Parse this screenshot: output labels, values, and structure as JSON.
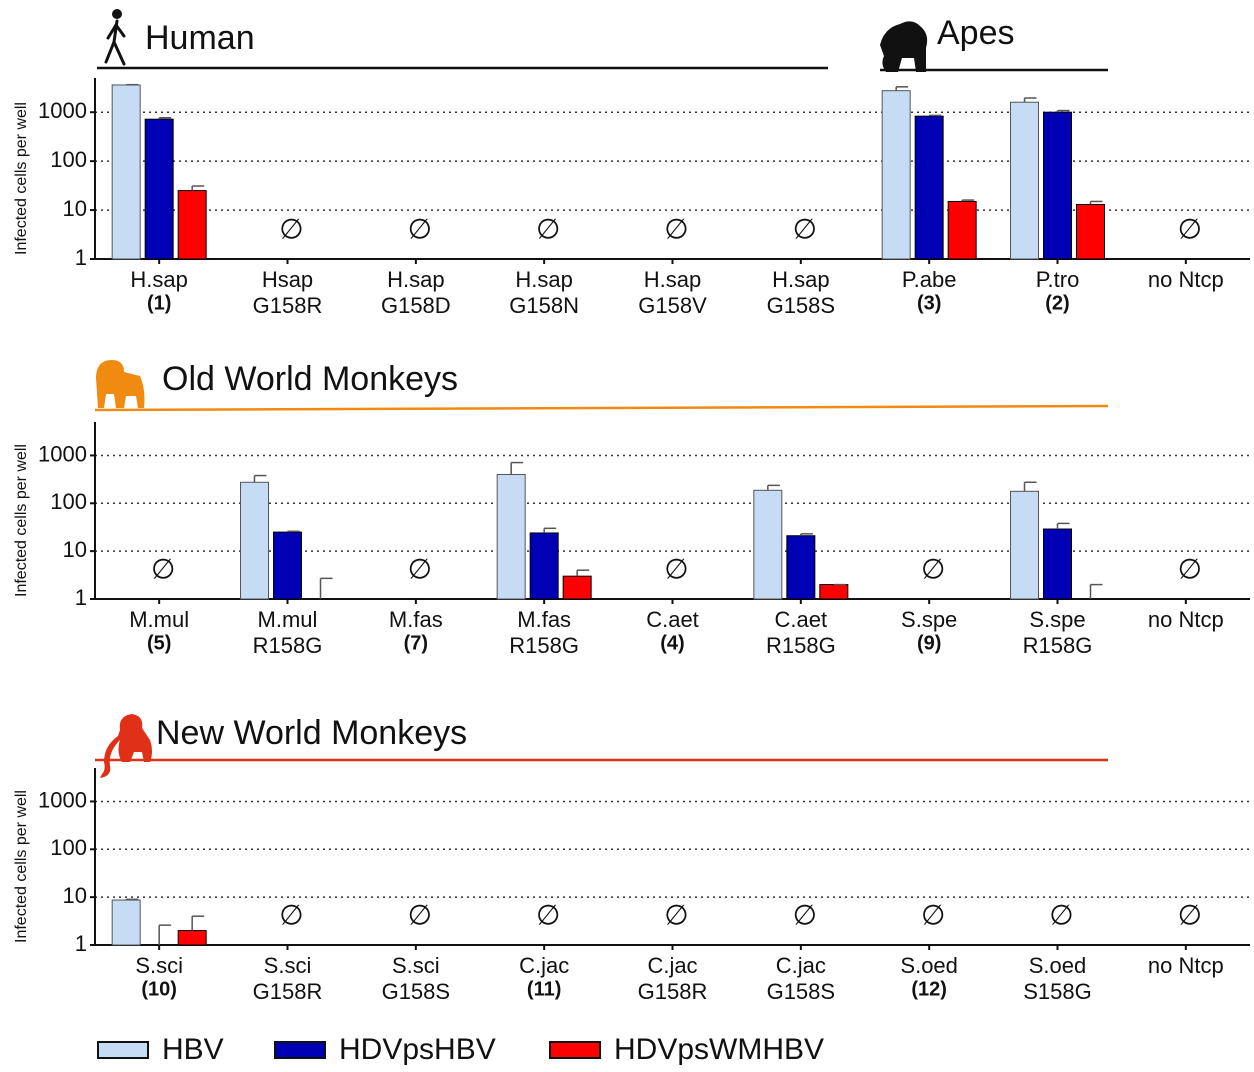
{
  "legend": [
    {
      "name": "HBV",
      "color": "#c6dcf5"
    },
    {
      "name": "HDVpsHBV",
      "color": "#0000b4"
    },
    {
      "name": "HDVpsWMHBV",
      "color": "#ff0000"
    }
  ],
  "chart_data": [
    {
      "type": "bar",
      "group_titles": [
        "Human",
        "Apes"
      ],
      "y_label": "Infected cells per well",
      "log_scale": true,
      "grid": true,
      "ylim": [
        1,
        5000
      ],
      "yticks": [
        1,
        10,
        100,
        1000
      ],
      "no_data_symbol": "∅",
      "categories": [
        "H.sap",
        "Hsap",
        "H.sap",
        "H.sap",
        "H.sap",
        "H.sap",
        "P.abe",
        "P.tro",
        "no Ntcp"
      ],
      "sublabels": [
        "(1)",
        "G158R",
        "G158D",
        "G158N",
        "G158V",
        "G158S",
        "(3)",
        "(2)",
        null
      ],
      "series": [
        {
          "values": [
            3600,
            null,
            null,
            null,
            null,
            null,
            2750,
            1600,
            null
          ],
          "errors": [
            50,
            null,
            null,
            null,
            null,
            null,
            550,
            350,
            null
          ]
        },
        {
          "values": [
            720,
            null,
            null,
            null,
            null,
            null,
            830,
            1000,
            null
          ],
          "errors": [
            50,
            null,
            null,
            null,
            null,
            null,
            30,
            80,
            null
          ]
        },
        {
          "values": [
            25,
            null,
            null,
            null,
            null,
            null,
            15,
            13,
            null
          ],
          "errors": [
            6,
            null,
            null,
            null,
            null,
            null,
            1,
            2,
            null
          ]
        }
      ]
    },
    {
      "type": "bar",
      "group_titles": [
        "Old World Monkeys"
      ],
      "y_label": "Infected cells per well",
      "log_scale": true,
      "grid": true,
      "ylim": [
        1,
        5000
      ],
      "yticks": [
        1,
        10,
        100,
        1000
      ],
      "no_data_symbol": "∅",
      "categories": [
        "M.mul",
        "M.mul",
        "M.fas",
        "M.fas",
        "C.aet",
        "C.aet",
        "S.spe",
        "S.spe",
        "no Ntcp"
      ],
      "sublabels": [
        "(5)",
        "R158G",
        "(7)",
        "R158G",
        "(4)",
        "R158G",
        "(9)",
        "R158G",
        null
      ],
      "series": [
        {
          "values": [
            null,
            275,
            null,
            400,
            null,
            187,
            null,
            178,
            null
          ],
          "errors": [
            null,
            105,
            null,
            310,
            null,
            50,
            null,
            97,
            null
          ]
        },
        {
          "values": [
            null,
            25,
            null,
            24,
            null,
            21,
            null,
            29,
            null
          ],
          "errors": [
            null,
            1,
            null,
            6,
            null,
            2,
            null,
            9,
            null
          ]
        },
        {
          "values": [
            null,
            1,
            null,
            3,
            null,
            2,
            null,
            1,
            null
          ],
          "errors": [
            null,
            1.7,
            null,
            1,
            null,
            0,
            null,
            1,
            null
          ]
        }
      ]
    },
    {
      "type": "bar",
      "group_titles": [
        "New World Monkeys"
      ],
      "y_label": "Infected cells per well",
      "log_scale": true,
      "grid": true,
      "ylim": [
        1,
        5000
      ],
      "yticks": [
        1,
        10,
        100,
        1000
      ],
      "no_data_symbol": "∅",
      "categories": [
        "S.sci",
        "S.sci",
        "S.sci",
        "C.jac",
        "C.jac",
        "C.jac",
        "S.oed",
        "S.oed",
        "no Ntcp"
      ],
      "sublabels": [
        "(10)",
        "G158R",
        "G158S",
        "(11)",
        "G158R",
        "G158S",
        "(12)",
        "S158G",
        null
      ],
      "series": [
        {
          "values": [
            8.7,
            null,
            null,
            null,
            null,
            null,
            null,
            null,
            null
          ],
          "errors": [
            0.3,
            null,
            null,
            null,
            null,
            null,
            null,
            null,
            null
          ]
        },
        {
          "values": [
            1,
            null,
            null,
            null,
            null,
            null,
            null,
            null,
            null
          ],
          "errors": [
            1.6,
            null,
            null,
            null,
            null,
            null,
            null,
            null,
            null
          ]
        },
        {
          "values": [
            2,
            null,
            null,
            null,
            null,
            null,
            null,
            null,
            null
          ],
          "errors": [
            2,
            null,
            null,
            null,
            null,
            null,
            null,
            null,
            null
          ]
        }
      ]
    }
  ]
}
